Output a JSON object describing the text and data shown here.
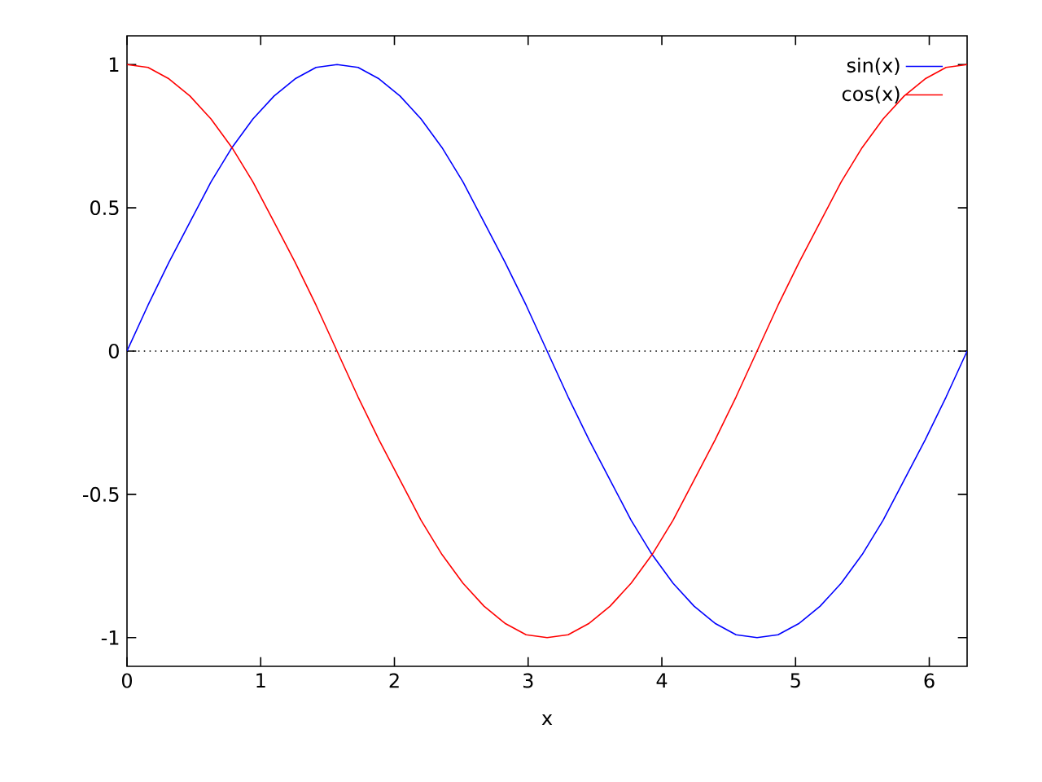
{
  "chart_data": {
    "type": "line",
    "xlabel": "x",
    "x": [
      0,
      0.157,
      0.314,
      0.471,
      0.628,
      0.785,
      0.942,
      1.1,
      1.257,
      1.414,
      1.571,
      1.728,
      1.885,
      2.042,
      2.199,
      2.356,
      2.513,
      2.67,
      2.827,
      2.985,
      3.142,
      3.299,
      3.456,
      3.613,
      3.77,
      3.927,
      4.084,
      4.241,
      4.398,
      4.555,
      4.712,
      4.869,
      5.027,
      5.184,
      5.341,
      5.498,
      5.655,
      5.812,
      5.969,
      6.126,
      6.283
    ],
    "series": [
      {
        "name": "sin(x)",
        "color": "#0000ff",
        "values": [
          0,
          0.16,
          0.31,
          0.45,
          0.59,
          0.71,
          0.81,
          0.89,
          0.95,
          0.99,
          1,
          0.99,
          0.95,
          0.89,
          0.81,
          0.71,
          0.59,
          0.45,
          0.31,
          0.16,
          0,
          -0.16,
          -0.31,
          -0.45,
          -0.59,
          -0.71,
          -0.81,
          -0.89,
          -0.95,
          -0.99,
          -1,
          -0.99,
          -0.95,
          -0.89,
          -0.81,
          -0.71,
          -0.59,
          -0.45,
          -0.31,
          -0.16,
          0
        ]
      },
      {
        "name": "cos(x)",
        "color": "#ff0000",
        "values": [
          1,
          0.99,
          0.95,
          0.89,
          0.81,
          0.71,
          0.59,
          0.45,
          0.31,
          0.16,
          0,
          -0.16,
          -0.31,
          -0.45,
          -0.59,
          -0.71,
          -0.81,
          -0.89,
          -0.95,
          -0.99,
          -1,
          -0.99,
          -0.95,
          -0.89,
          -0.81,
          -0.71,
          -0.59,
          -0.45,
          -0.31,
          -0.16,
          0,
          0.16,
          0.31,
          0.45,
          0.59,
          0.71,
          0.81,
          0.89,
          0.95,
          0.99,
          1
        ]
      }
    ],
    "xlim": [
      0,
      6.283
    ],
    "xticks": [
      0,
      1,
      2,
      3,
      4,
      5,
      6
    ],
    "ylim": [
      -1.1,
      1.1
    ],
    "yticks": [
      -1,
      -0.5,
      0,
      0.5,
      1
    ],
    "ref_lines": [
      {
        "axis": "y",
        "value": 0,
        "line_style": "dotted",
        "color": "#000000"
      }
    ],
    "legend": "top right",
    "marker": "none",
    "line_style": "solid",
    "grid": false
  }
}
